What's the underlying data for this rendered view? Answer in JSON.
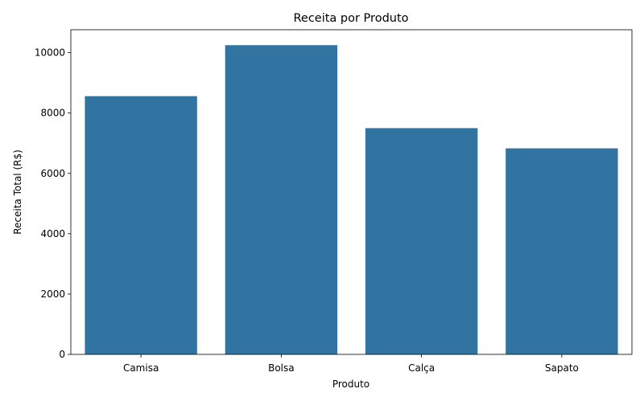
{
  "chart_data": {
    "type": "bar",
    "title": "Receita por Produto",
    "xlabel": "Produto",
    "ylabel": "Receita Total (R$)",
    "categories": [
      "Camisa",
      "Bolsa",
      "Calça",
      "Sapato"
    ],
    "values": [
      8560,
      10250,
      7500,
      6830
    ],
    "ylim": [
      0,
      10762
    ],
    "yticks": [
      0,
      2000,
      4000,
      6000,
      8000,
      10000
    ],
    "bar_color": "#3274a1",
    "grid": false,
    "legend": "none"
  }
}
